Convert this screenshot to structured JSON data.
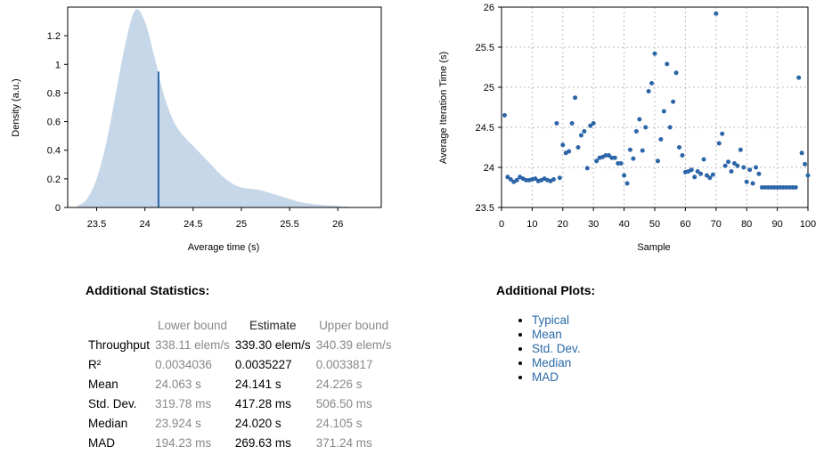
{
  "density_plot": {
    "ylabel": "Density (a.u.)",
    "xlabel": "Average time (s)"
  },
  "iteration_plot": {
    "ylabel": "Average Iteration Time (s)",
    "xlabel": "Sample"
  },
  "chart_data": [
    {
      "type": "area",
      "title": "",
      "xlabel": "Average time (s)",
      "ylabel": "Density (a.u.)",
      "xlim": [
        23.2,
        26.45
      ],
      "ylim": [
        0,
        1.4
      ],
      "x_ticks": [
        "23.5",
        "24",
        "24.5",
        "25",
        "25.5",
        "26"
      ],
      "y_ticks": [
        "0",
        "0.2",
        "0.4",
        "0.6",
        "0.8",
        "1",
        "1.2"
      ],
      "grid": false,
      "fill_color": "#c6d7e9",
      "mean_line_color": "#2d66a8",
      "mean_line": {
        "x": 24.141,
        "y": 0.95
      },
      "x": [
        23.3,
        23.4,
        23.5,
        23.6,
        23.7,
        23.8,
        23.9,
        24.0,
        24.1,
        24.2,
        24.3,
        24.4,
        24.5,
        24.6,
        24.7,
        24.8,
        24.9,
        25.0,
        25.2,
        25.4,
        25.6,
        25.8,
        26.0,
        26.2
      ],
      "y": [
        0.01,
        0.06,
        0.2,
        0.45,
        0.8,
        1.15,
        1.38,
        1.3,
        1.05,
        0.78,
        0.6,
        0.5,
        0.43,
        0.36,
        0.29,
        0.22,
        0.17,
        0.14,
        0.12,
        0.08,
        0.04,
        0.02,
        0.01,
        0.0
      ]
    },
    {
      "type": "scatter",
      "title": "",
      "xlabel": "Sample",
      "ylabel": "Average Iteration Time (s)",
      "xlim": [
        0,
        100
      ],
      "ylim": [
        23.5,
        26
      ],
      "x_ticks": [
        "0",
        "10",
        "20",
        "30",
        "40",
        "50",
        "60",
        "70",
        "80",
        "90",
        "100"
      ],
      "y_ticks": [
        "23.5",
        "24",
        "24.5",
        "25",
        "25.5",
        "26"
      ],
      "grid": true,
      "point_color": "#2d66a8",
      "x": [
        1,
        2,
        3,
        4,
        5,
        6,
        7,
        8,
        9,
        10,
        11,
        12,
        13,
        14,
        15,
        16,
        17,
        18,
        19,
        20,
        21,
        22,
        23,
        24,
        25,
        26,
        27,
        28,
        29,
        30,
        31,
        32,
        33,
        34,
        35,
        36,
        37,
        38,
        39,
        40,
        41,
        42,
        43,
        44,
        45,
        46,
        47,
        48,
        49,
        50,
        51,
        52,
        53,
        54,
        55,
        56,
        57,
        58,
        59,
        60,
        61,
        62,
        63,
        64,
        65,
        66,
        67,
        68,
        69,
        70,
        71,
        72,
        73,
        74,
        75,
        76,
        77,
        78,
        79,
        80,
        81,
        82,
        83,
        84,
        85,
        86,
        87,
        88,
        89,
        90,
        91,
        92,
        93,
        94,
        95,
        96,
        97,
        98,
        99,
        100
      ],
      "y": [
        24.65,
        23.88,
        23.85,
        23.82,
        23.84,
        23.88,
        23.86,
        23.84,
        23.84,
        23.85,
        23.86,
        23.83,
        23.84,
        23.86,
        23.84,
        23.83,
        23.85,
        24.55,
        23.87,
        24.28,
        24.18,
        24.2,
        24.55,
        24.87,
        24.25,
        24.4,
        24.45,
        23.99,
        24.52,
        24.55,
        24.08,
        24.12,
        24.13,
        24.15,
        24.15,
        24.12,
        24.12,
        24.05,
        24.05,
        23.9,
        23.8,
        24.22,
        24.11,
        24.45,
        24.6,
        24.21,
        24.5,
        24.95,
        25.05,
        25.42,
        24.08,
        24.35,
        24.7,
        25.29,
        24.5,
        24.82,
        25.18,
        24.25,
        24.15,
        23.94,
        23.95,
        23.97,
        23.88,
        23.95,
        23.92,
        24.1,
        23.9,
        23.87,
        23.91,
        25.92,
        24.3,
        24.42,
        24.02,
        24.07,
        23.95,
        24.05,
        24.02,
        24.22,
        24.0,
        23.82,
        23.97,
        23.8,
        24.0,
        23.92,
        23.75,
        23.75,
        23.75,
        23.75,
        23.75,
        23.75,
        23.75,
        23.75,
        23.75,
        23.75,
        23.75,
        23.75,
        25.12,
        24.18,
        24.04,
        23.9
      ]
    }
  ],
  "stats": {
    "title": "Additional Statistics:",
    "headers": {
      "lower": "Lower bound",
      "estimate": "Estimate",
      "upper": "Upper bound"
    },
    "rows": [
      {
        "label": "Throughput",
        "lower": "338.11 elem/s",
        "estimate": "339.30 elem/s",
        "upper": "340.39 elem/s"
      },
      {
        "label": "R²",
        "lower": "0.0034036",
        "estimate": "0.0035227",
        "upper": "0.0033817"
      },
      {
        "label": "Mean",
        "lower": "24.063 s",
        "estimate": "24.141 s",
        "upper": "24.226 s"
      },
      {
        "label": "Std. Dev.",
        "lower": "319.78 ms",
        "estimate": "417.28 ms",
        "upper": "506.50 ms"
      },
      {
        "label": "Median",
        "lower": "23.924 s",
        "estimate": "24.020 s",
        "upper": "24.105 s"
      },
      {
        "label": "MAD",
        "lower": "194.23 ms",
        "estimate": "269.63 ms",
        "upper": "371.24 ms"
      }
    ]
  },
  "plots": {
    "title": "Additional Plots:",
    "links": [
      "Typical",
      "Mean",
      "Std. Dev.",
      "Median",
      "MAD"
    ]
  }
}
